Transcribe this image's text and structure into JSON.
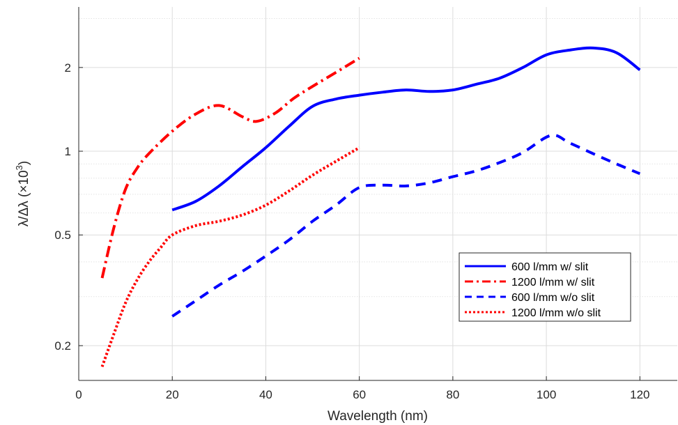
{
  "chart_data": {
    "type": "line",
    "xlabel": "Wavelength (nm)",
    "ylabel": {
      "prefix": "λ/Δλ (×10",
      "superscript": "3",
      "suffix": ")"
    },
    "xlim": [
      0,
      128
    ],
    "ylim": [
      0.15,
      3.3
    ],
    "yscale": "log",
    "grid": true,
    "minor_grid_y": true,
    "x_ticks": [
      0,
      20,
      40,
      60,
      80,
      100,
      120
    ],
    "x_tick_labels": [
      "0",
      "20",
      "40",
      "60",
      "80",
      "100",
      "120"
    ],
    "y_ticks": [
      0.2,
      0.5,
      1,
      2
    ],
    "y_tick_labels": [
      "0.2",
      "0.5",
      "1",
      "2"
    ],
    "y_minor_ticks": [
      0.3,
      0.4,
      0.6,
      0.7,
      0.8,
      0.9,
      3
    ],
    "legend_position": "bottom-right",
    "series": [
      {
        "name": "600 l/mm w/ slit",
        "color": "#0000ff",
        "dash": "solid",
        "points": [
          [
            20,
            0.615
          ],
          [
            25,
            0.66
          ],
          [
            30,
            0.75
          ],
          [
            35,
            0.88
          ],
          [
            40,
            1.03
          ],
          [
            45,
            1.23
          ],
          [
            50,
            1.45
          ],
          [
            55,
            1.54
          ],
          [
            60,
            1.59
          ],
          [
            65,
            1.63
          ],
          [
            70,
            1.66
          ],
          [
            75,
            1.64
          ],
          [
            80,
            1.66
          ],
          [
            85,
            1.74
          ],
          [
            90,
            1.83
          ],
          [
            95,
            2.0
          ],
          [
            100,
            2.22
          ],
          [
            105,
            2.31
          ],
          [
            110,
            2.35
          ],
          [
            115,
            2.26
          ],
          [
            120,
            1.96
          ]
        ]
      },
      {
        "name": "1200 l/mm w/ slit",
        "color": "#ff0000",
        "dash": "dashdot",
        "points": [
          [
            5,
            0.35
          ],
          [
            7.5,
            0.53
          ],
          [
            10,
            0.73
          ],
          [
            12.5,
            0.87
          ],
          [
            15,
            0.98
          ],
          [
            20,
            1.18
          ],
          [
            25,
            1.36
          ],
          [
            30,
            1.46
          ],
          [
            35,
            1.33
          ],
          [
            38,
            1.28
          ],
          [
            42,
            1.37
          ],
          [
            46,
            1.55
          ],
          [
            50,
            1.71
          ],
          [
            55,
            1.92
          ],
          [
            60,
            2.16
          ]
        ]
      },
      {
        "name": "600 l/mm w/o slit",
        "color": "#0000ff",
        "dash": "dashed",
        "points": [
          [
            20,
            0.255
          ],
          [
            25,
            0.29
          ],
          [
            30,
            0.33
          ],
          [
            35,
            0.37
          ],
          [
            40,
            0.42
          ],
          [
            45,
            0.48
          ],
          [
            50,
            0.56
          ],
          [
            55,
            0.64
          ],
          [
            60,
            0.74
          ],
          [
            65,
            0.755
          ],
          [
            70,
            0.75
          ],
          [
            75,
            0.77
          ],
          [
            80,
            0.81
          ],
          [
            85,
            0.85
          ],
          [
            90,
            0.91
          ],
          [
            95,
            0.99
          ],
          [
            101,
            1.14
          ],
          [
            105,
            1.07
          ],
          [
            110,
            0.98
          ],
          [
            115,
            0.9
          ],
          [
            120,
            0.83
          ]
        ]
      },
      {
        "name": "1200 l/mm w/o slit",
        "color": "#ff0000",
        "dash": "dotted",
        "points": [
          [
            5,
            0.168
          ],
          [
            7.5,
            0.22
          ],
          [
            10,
            0.285
          ],
          [
            12.5,
            0.345
          ],
          [
            15,
            0.4
          ],
          [
            17.5,
            0.45
          ],
          [
            20,
            0.5
          ],
          [
            25,
            0.54
          ],
          [
            30,
            0.56
          ],
          [
            35,
            0.59
          ],
          [
            40,
            0.64
          ],
          [
            45,
            0.72
          ],
          [
            50,
            0.82
          ],
          [
            55,
            0.92
          ],
          [
            60,
            1.03
          ]
        ]
      }
    ]
  }
}
